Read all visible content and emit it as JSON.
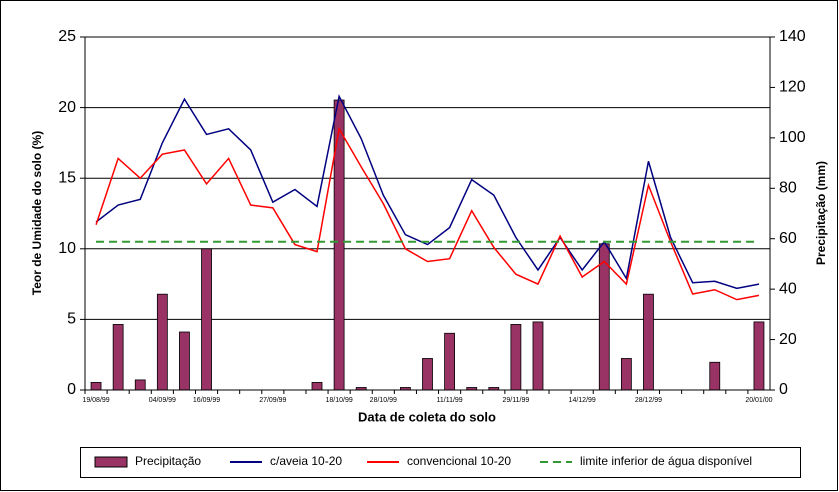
{
  "chart_data": {
    "type": "bar-line",
    "x_label": "Data de coleta do solo",
    "y_label": "Teor de Umidade do solo (%)",
    "y2_label": "Precipitação (mm)",
    "categories": [
      "19/08/99",
      null,
      null,
      "04/09/99",
      null,
      "16/09/99",
      null,
      null,
      "27/09/99",
      null,
      null,
      "18/10/99",
      null,
      "28/10/99",
      null,
      null,
      "11/11/99",
      null,
      null,
      "29/11/99",
      null,
      null,
      "14/12/99",
      null,
      null,
      "28/12/99",
      null,
      null,
      null,
      null,
      "20/01/00"
    ],
    "ylim": [
      0,
      25
    ],
    "yticks": [
      0,
      5,
      10,
      15,
      20,
      25
    ],
    "y2lim": [
      0,
      140
    ],
    "y2ticks": [
      0,
      20,
      40,
      60,
      80,
      100,
      120,
      140
    ],
    "grid": true,
    "legend": "bottom",
    "series": [
      {
        "name": "Precipitação",
        "type": "bar",
        "axis": "y2",
        "color": "#993366",
        "values": [
          3,
          26,
          4,
          38,
          23,
          56,
          0,
          0,
          0,
          0,
          3,
          115,
          1,
          0,
          1,
          12.5,
          22.5,
          1,
          1,
          26,
          27,
          0,
          0,
          58,
          12.5,
          38,
          0,
          0,
          11,
          0,
          27
        ]
      },
      {
        "name": "c/aveia 10-20",
        "type": "line",
        "color": "#000080",
        "values": [
          11.9,
          13.1,
          13.5,
          17.5,
          20.6,
          18.1,
          18.5,
          17.0,
          13.3,
          14.2,
          13.0,
          20.8,
          17.8,
          13.8,
          11.0,
          10.3,
          11.5,
          14.9,
          13.8,
          10.8,
          8.5,
          10.8,
          8.5,
          10.5,
          7.9,
          16.2,
          10.8,
          7.6,
          7.7,
          7.2,
          7.5
        ]
      },
      {
        "name": "convencional 10-20",
        "type": "line",
        "color": "#ff0000",
        "values": [
          11.7,
          16.4,
          15.0,
          16.7,
          17.0,
          14.6,
          16.4,
          13.1,
          12.9,
          10.3,
          9.8,
          18.5,
          15.8,
          13.2,
          10.0,
          9.1,
          9.3,
          12.7,
          10.1,
          8.2,
          7.5,
          10.9,
          8.0,
          9.1,
          7.5,
          14.5,
          10.5,
          6.8,
          7.1,
          6.4,
          6.7
        ]
      },
      {
        "name": "limite inferior de água disponível",
        "type": "dashed",
        "color": "#339933",
        "values": [
          10.5,
          10.5,
          10.5,
          10.5,
          10.5,
          10.5,
          10.5,
          10.5,
          10.5,
          10.5,
          10.5,
          10.5,
          10.5,
          10.5,
          10.5,
          10.5,
          10.5,
          10.5,
          10.5,
          10.5,
          10.5,
          10.5,
          10.5,
          10.5,
          10.5,
          10.5,
          10.5,
          10.5,
          10.5,
          10.5,
          10.5
        ]
      }
    ]
  }
}
